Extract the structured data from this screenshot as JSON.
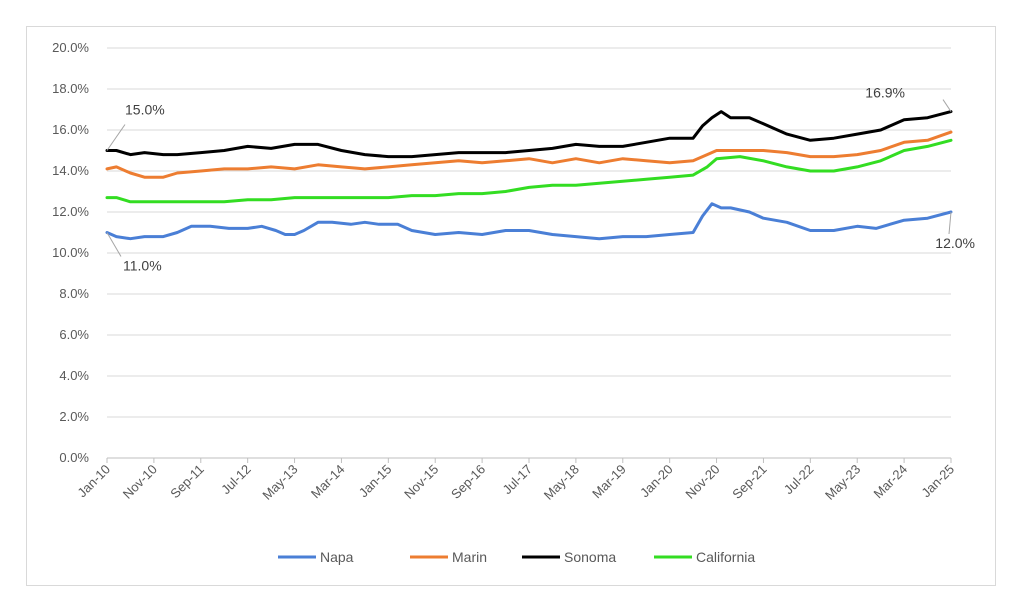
{
  "chart_data": {
    "type": "line",
    "title": "",
    "xlabel": "",
    "ylabel": "",
    "ylim": [
      0,
      20
    ],
    "y_ticks": [
      "0.0%",
      "2.0%",
      "4.0%",
      "6.0%",
      "8.0%",
      "10.0%",
      "12.0%",
      "14.0%",
      "16.0%",
      "18.0%",
      "20.0%"
    ],
    "x_tick_labels": [
      "Jan-10",
      "Nov-10",
      "Sep-11",
      "Jul-12",
      "May-13",
      "Mar-14",
      "Jan-15",
      "Nov-15",
      "Sep-16",
      "Jul-17",
      "May-18",
      "Mar-19",
      "Jan-20",
      "Nov-20",
      "Sep-21",
      "Jul-22",
      "May-23",
      "Mar-24",
      "Jan-25"
    ],
    "x_tick_months": [
      0,
      10,
      20,
      30,
      40,
      50,
      60,
      70,
      80,
      90,
      100,
      110,
      120,
      130,
      140,
      150,
      160,
      170,
      180
    ],
    "legend_position": "bottom",
    "series": [
      {
        "name": "Napa",
        "color": "#4a7fd6",
        "points": [
          [
            0,
            11.0
          ],
          [
            2,
            10.8
          ],
          [
            5,
            10.7
          ],
          [
            8,
            10.8
          ],
          [
            12,
            10.8
          ],
          [
            15,
            11.0
          ],
          [
            18,
            11.3
          ],
          [
            22,
            11.3
          ],
          [
            26,
            11.2
          ],
          [
            30,
            11.2
          ],
          [
            33,
            11.3
          ],
          [
            36,
            11.1
          ],
          [
            38,
            10.9
          ],
          [
            40,
            10.9
          ],
          [
            42,
            11.1
          ],
          [
            45,
            11.5
          ],
          [
            48,
            11.5
          ],
          [
            52,
            11.4
          ],
          [
            55,
            11.5
          ],
          [
            58,
            11.4
          ],
          [
            62,
            11.4
          ],
          [
            65,
            11.1
          ],
          [
            70,
            10.9
          ],
          [
            75,
            11.0
          ],
          [
            80,
            10.9
          ],
          [
            85,
            11.1
          ],
          [
            90,
            11.1
          ],
          [
            95,
            10.9
          ],
          [
            100,
            10.8
          ],
          [
            105,
            10.7
          ],
          [
            110,
            10.8
          ],
          [
            115,
            10.8
          ],
          [
            120,
            10.9
          ],
          [
            125,
            11.0
          ],
          [
            127,
            11.8
          ],
          [
            129,
            12.4
          ],
          [
            131,
            12.2
          ],
          [
            133,
            12.2
          ],
          [
            137,
            12.0
          ],
          [
            140,
            11.7
          ],
          [
            145,
            11.5
          ],
          [
            150,
            11.1
          ],
          [
            155,
            11.1
          ],
          [
            160,
            11.3
          ],
          [
            164,
            11.2
          ],
          [
            170,
            11.6
          ],
          [
            175,
            11.7
          ],
          [
            180,
            12.0
          ]
        ]
      },
      {
        "name": "Marin",
        "color": "#ed7d31",
        "points": [
          [
            0,
            14.1
          ],
          [
            2,
            14.2
          ],
          [
            5,
            13.9
          ],
          [
            8,
            13.7
          ],
          [
            12,
            13.7
          ],
          [
            15,
            13.9
          ],
          [
            20,
            14.0
          ],
          [
            25,
            14.1
          ],
          [
            30,
            14.1
          ],
          [
            35,
            14.2
          ],
          [
            40,
            14.1
          ],
          [
            45,
            14.3
          ],
          [
            50,
            14.2
          ],
          [
            55,
            14.1
          ],
          [
            60,
            14.2
          ],
          [
            65,
            14.3
          ],
          [
            70,
            14.4
          ],
          [
            75,
            14.5
          ],
          [
            80,
            14.4
          ],
          [
            85,
            14.5
          ],
          [
            90,
            14.6
          ],
          [
            95,
            14.4
          ],
          [
            100,
            14.6
          ],
          [
            105,
            14.4
          ],
          [
            110,
            14.6
          ],
          [
            115,
            14.5
          ],
          [
            120,
            14.4
          ],
          [
            125,
            14.5
          ],
          [
            128,
            14.8
          ],
          [
            130,
            15.0
          ],
          [
            135,
            15.0
          ],
          [
            140,
            15.0
          ],
          [
            145,
            14.9
          ],
          [
            150,
            14.7
          ],
          [
            155,
            14.7
          ],
          [
            160,
            14.8
          ],
          [
            165,
            15.0
          ],
          [
            170,
            15.4
          ],
          [
            175,
            15.5
          ],
          [
            180,
            15.9
          ]
        ]
      },
      {
        "name": "Sonoma",
        "color": "#000000",
        "points": [
          [
            0,
            15.0
          ],
          [
            2,
            15.0
          ],
          [
            5,
            14.8
          ],
          [
            8,
            14.9
          ],
          [
            12,
            14.8
          ],
          [
            15,
            14.8
          ],
          [
            20,
            14.9
          ],
          [
            25,
            15.0
          ],
          [
            30,
            15.2
          ],
          [
            35,
            15.1
          ],
          [
            40,
            15.3
          ],
          [
            45,
            15.3
          ],
          [
            50,
            15.0
          ],
          [
            55,
            14.8
          ],
          [
            60,
            14.7
          ],
          [
            65,
            14.7
          ],
          [
            70,
            14.8
          ],
          [
            75,
            14.9
          ],
          [
            80,
            14.9
          ],
          [
            85,
            14.9
          ],
          [
            90,
            15.0
          ],
          [
            95,
            15.1
          ],
          [
            100,
            15.3
          ],
          [
            105,
            15.2
          ],
          [
            110,
            15.2
          ],
          [
            115,
            15.4
          ],
          [
            120,
            15.6
          ],
          [
            125,
            15.6
          ],
          [
            127,
            16.2
          ],
          [
            129,
            16.6
          ],
          [
            131,
            16.9
          ],
          [
            133,
            16.6
          ],
          [
            137,
            16.6
          ],
          [
            140,
            16.3
          ],
          [
            145,
            15.8
          ],
          [
            150,
            15.5
          ],
          [
            155,
            15.6
          ],
          [
            160,
            15.8
          ],
          [
            165,
            16.0
          ],
          [
            170,
            16.5
          ],
          [
            175,
            16.6
          ],
          [
            180,
            16.9
          ]
        ]
      },
      {
        "name": "California",
        "color": "#33dd22",
        "points": [
          [
            0,
            12.7
          ],
          [
            2,
            12.7
          ],
          [
            5,
            12.5
          ],
          [
            10,
            12.5
          ],
          [
            15,
            12.5
          ],
          [
            20,
            12.5
          ],
          [
            25,
            12.5
          ],
          [
            30,
            12.6
          ],
          [
            35,
            12.6
          ],
          [
            40,
            12.7
          ],
          [
            45,
            12.7
          ],
          [
            50,
            12.7
          ],
          [
            55,
            12.7
          ],
          [
            60,
            12.7
          ],
          [
            65,
            12.8
          ],
          [
            70,
            12.8
          ],
          [
            75,
            12.9
          ],
          [
            80,
            12.9
          ],
          [
            85,
            13.0
          ],
          [
            90,
            13.2
          ],
          [
            95,
            13.3
          ],
          [
            100,
            13.3
          ],
          [
            105,
            13.4
          ],
          [
            110,
            13.5
          ],
          [
            115,
            13.6
          ],
          [
            120,
            13.7
          ],
          [
            125,
            13.8
          ],
          [
            128,
            14.2
          ],
          [
            130,
            14.6
          ],
          [
            135,
            14.7
          ],
          [
            140,
            14.5
          ],
          [
            145,
            14.2
          ],
          [
            150,
            14.0
          ],
          [
            155,
            14.0
          ],
          [
            160,
            14.2
          ],
          [
            165,
            14.5
          ],
          [
            170,
            15.0
          ],
          [
            175,
            15.2
          ],
          [
            180,
            15.5
          ]
        ]
      }
    ],
    "annotations": [
      {
        "text": "15.0%",
        "month": 0,
        "value": 15.0,
        "series": "Sonoma"
      },
      {
        "text": "11.0%",
        "month": 0,
        "value": 11.0,
        "series": "Napa"
      },
      {
        "text": "16.9%",
        "month": 180,
        "value": 16.9,
        "series": "Sonoma"
      },
      {
        "text": "12.0%",
        "month": 180,
        "value": 12.0,
        "series": "Napa"
      }
    ]
  }
}
